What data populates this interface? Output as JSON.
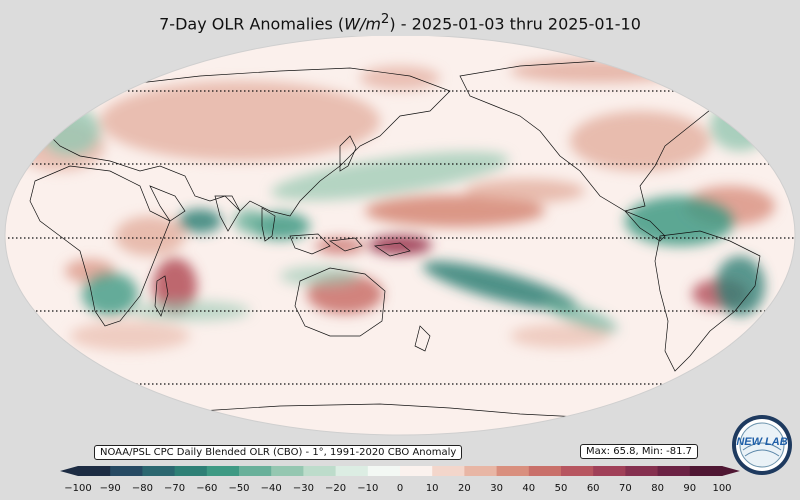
{
  "title": {
    "prefix": "7-Day OLR Anomalies (",
    "unit": "W/m",
    "unit_exp": "2",
    "suffix": ") - 2025-01-03 thru 2025-01-10"
  },
  "source_label": "NOAA/PSL CPC Daily Blended OLR (CBO) - 1°, 1991-2020 CBO Anomaly",
  "stats_label": "Max: 65.8,  Min: -81.7",
  "colorbar": {
    "ticks": [
      "−100",
      "−90",
      "−80",
      "−70",
      "−60",
      "−50",
      "−40",
      "−30",
      "−20",
      "−10",
      "0",
      "10",
      "20",
      "30",
      "40",
      "50",
      "60",
      "70",
      "80",
      "90",
      "100"
    ],
    "colors": [
      "#1d2c43",
      "#274a63",
      "#2c6770",
      "#2f8076",
      "#3f9a84",
      "#69b09a",
      "#95c7b1",
      "#bddccb",
      "#dcede3",
      "#f3f8f4",
      "#fbf2ee",
      "#f3d6cb",
      "#e8b6a5",
      "#d98f7e",
      "#c9706a",
      "#b75660",
      "#a04058",
      "#85304f",
      "#6b2244",
      "#4f1733"
    ]
  },
  "logo": {
    "text": "NEW LAB"
  },
  "colors": {
    "ocean": "#fbf0ec",
    "wet": "#2f8076",
    "dry": "#a04058"
  }
}
